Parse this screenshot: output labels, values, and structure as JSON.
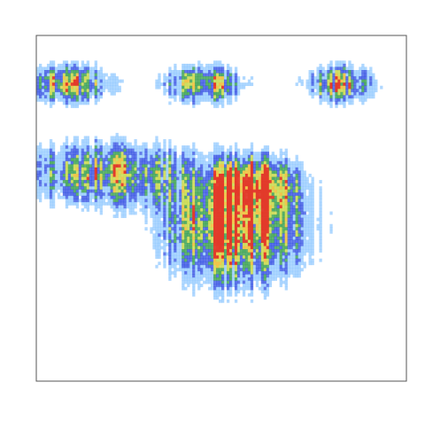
{
  "chart_data": {
    "type": "heatmap",
    "title": "",
    "xlabel": "",
    "ylabel": "",
    "x_range": [
      0,
      1
    ],
    "y_range": [
      0,
      1
    ],
    "axes_visible": false,
    "grid": false,
    "legend": "none",
    "colormap": [
      {
        "level": 0.15,
        "color": "#bfe4ff"
      },
      {
        "level": 0.3,
        "color": "#7fc0ff"
      },
      {
        "level": 0.45,
        "color": "#1f3fe0"
      },
      {
        "level": 0.6,
        "color": "#2e9b46"
      },
      {
        "level": 0.75,
        "color": "#c8d84a"
      },
      {
        "level": 0.88,
        "color": "#f0c040"
      },
      {
        "level": 1.0,
        "color": "#e23a2a"
      }
    ],
    "clusters": [
      {
        "name": "top-left",
        "cx": 0.09,
        "cy": 0.86,
        "sx": 0.07,
        "sy": 0.035,
        "peak": 0.75
      },
      {
        "name": "top-middle",
        "cx": 0.45,
        "cy": 0.86,
        "sx": 0.07,
        "sy": 0.035,
        "peak": 0.7
      },
      {
        "name": "top-right",
        "cx": 0.82,
        "cy": 0.86,
        "sx": 0.06,
        "sy": 0.035,
        "peak": 0.7
      },
      {
        "name": "middle-left",
        "cx": 0.2,
        "cy": 0.6,
        "sx": 0.15,
        "sy": 0.06,
        "peak": 0.65
      },
      {
        "name": "center-main",
        "cx": 0.54,
        "cy": 0.44,
        "sx": 0.12,
        "sy": 0.1,
        "peak": 1.0
      },
      {
        "name": "center-upper",
        "cx": 0.59,
        "cy": 0.57,
        "sx": 0.07,
        "sy": 0.05,
        "peak": 0.88
      }
    ]
  }
}
